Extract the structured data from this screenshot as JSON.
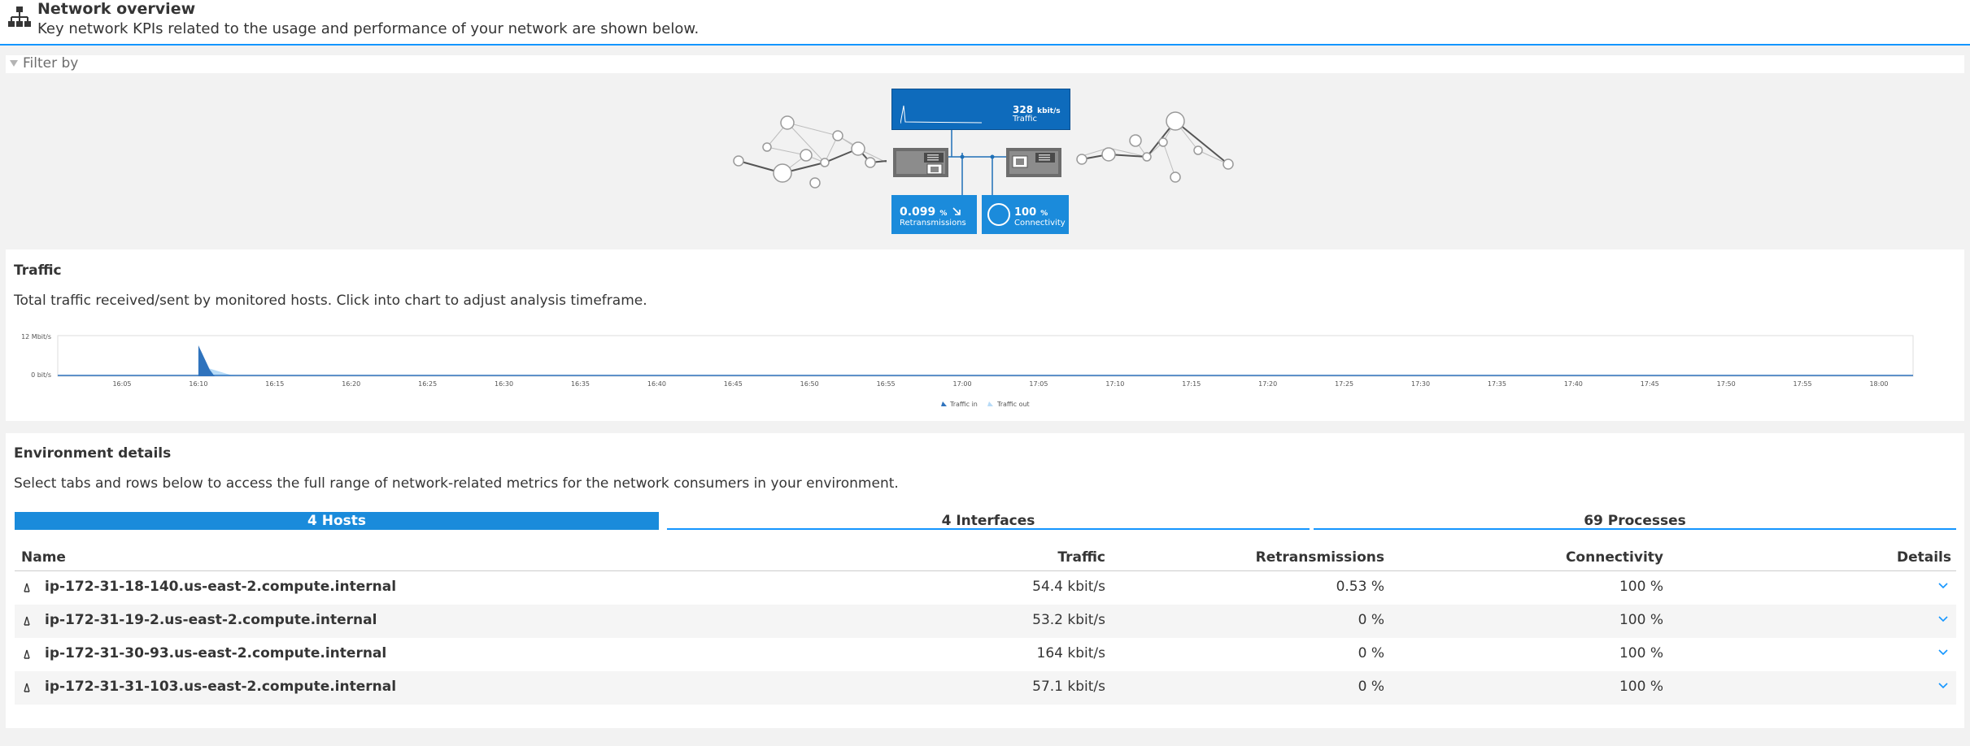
{
  "header": {
    "title": "Network overview",
    "subtitle": "Key network KPIs related to the usage and performance of your network are shown below."
  },
  "filter": {
    "label": "Filter by"
  },
  "kpis": {
    "traffic": {
      "value": "328",
      "unit": "kbit/s",
      "label": "Traffic"
    },
    "retransmissions": {
      "value": "0.099",
      "unit": "%",
      "label": "Retransmissions"
    },
    "connectivity": {
      "value": "100",
      "unit": "%",
      "label": "Connectivity"
    }
  },
  "traffic": {
    "title": "Traffic",
    "description": "Total traffic received/sent by monitored hosts. Click into chart to adjust analysis timeframe."
  },
  "chart_data": {
    "type": "area",
    "ylim_labels": [
      "12 Mbit/s",
      "0 bit/s"
    ],
    "x": [
      "16:05",
      "16:10",
      "16:15",
      "16:20",
      "16:25",
      "16:30",
      "16:35",
      "16:40",
      "16:45",
      "16:50",
      "16:55",
      "17:00",
      "17:05",
      "17:10",
      "17:15",
      "17:20",
      "17:25",
      "17:30",
      "17:35",
      "17:40",
      "17:45",
      "17:50",
      "17:55",
      "18:00"
    ],
    "series": [
      {
        "name": "Traffic in",
        "color": "#2f73bd"
      },
      {
        "name": "Traffic out",
        "color": "#b7dbf7"
      }
    ],
    "legend": "bottom-center"
  },
  "env": {
    "title": "Environment details",
    "description": "Select tabs and rows below to access the full range of network-related metrics for the network consumers in your environment.",
    "tabs": [
      "4 Hosts",
      "4 Interfaces",
      "69 Processes"
    ],
    "columns": [
      "Name",
      "Traffic",
      "Retransmissions",
      "Connectivity",
      "Details"
    ],
    "rows": [
      {
        "name": "ip-172-31-18-140.us-east-2.compute.internal",
        "traffic": "54.4 kbit/s",
        "retransmissions": "0.53 %",
        "connectivity": "100 %"
      },
      {
        "name": "ip-172-31-19-2.us-east-2.compute.internal",
        "traffic": "53.2 kbit/s",
        "retransmissions": "0 %",
        "connectivity": "100 %"
      },
      {
        "name": "ip-172-31-30-93.us-east-2.compute.internal",
        "traffic": "164 kbit/s",
        "retransmissions": "0 %",
        "connectivity": "100 %"
      },
      {
        "name": "ip-172-31-31-103.us-east-2.compute.internal",
        "traffic": "57.1 kbit/s",
        "retransmissions": "0 %",
        "connectivity": "100 %"
      }
    ]
  },
  "colors": {
    "accent": "#1496ff",
    "active_tab": "#1a8bdb",
    "kpi_dark": "#0e6bbc"
  }
}
